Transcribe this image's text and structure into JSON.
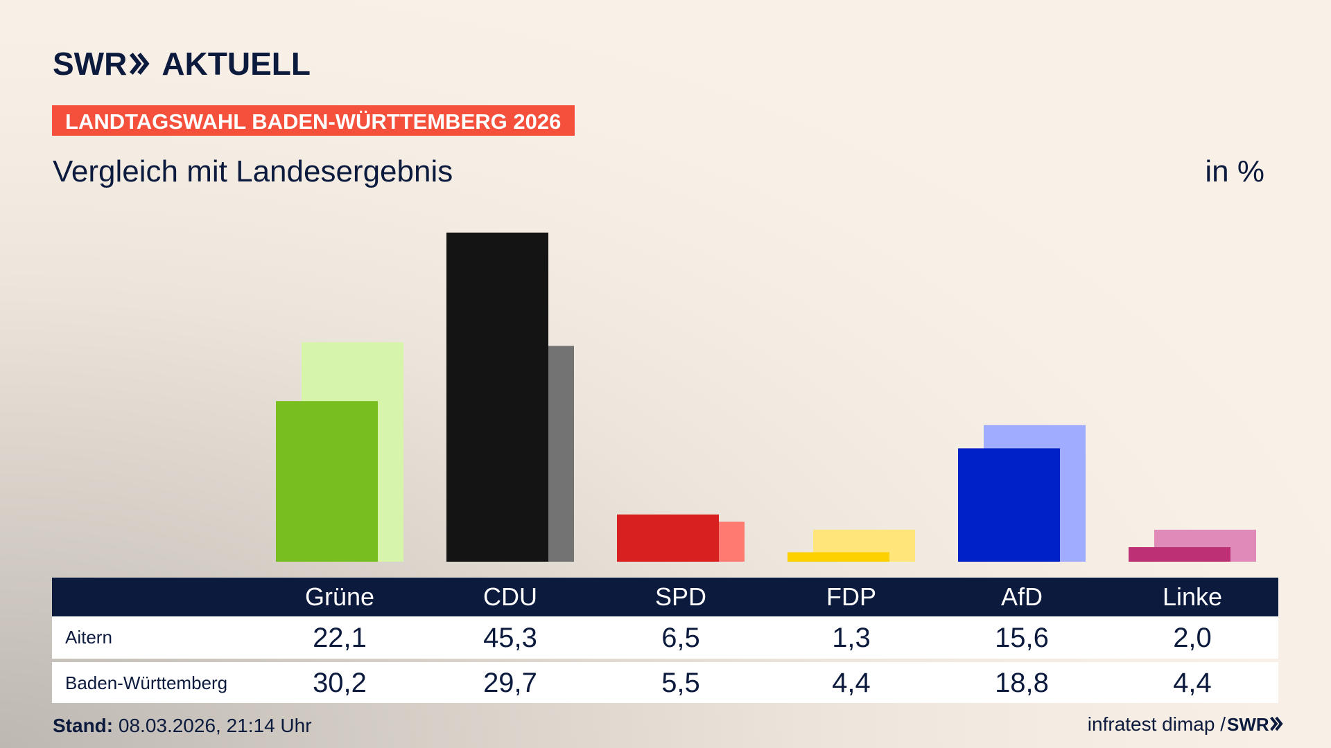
{
  "brand": "SWR",
  "brand_product": "AKTUELL",
  "chart_data": {
    "type": "overlap-bar",
    "kicker": "LANDTAGSWAHL BADEN-WÜRTTEMBERG 2026",
    "title": "Vergleich mit Landesergebnis",
    "unit_label": "in %",
    "categories": [
      "Grüne",
      "CDU",
      "SPD",
      "FDP",
      "AfD",
      "Linke"
    ],
    "series": [
      {
        "name": "Aitern",
        "values": [
          22.1,
          45.3,
          6.5,
          1.3,
          15.6,
          2.0
        ],
        "value_labels": [
          "22,1",
          "45,3",
          "6,5",
          "1,3",
          "15,6",
          "2,0"
        ],
        "colors": [
          "#78be1e",
          "#141414",
          "#d7201f",
          "#fdd000",
          "#0020c8",
          "#be3075"
        ]
      },
      {
        "name": "Baden-Württemberg",
        "values": [
          30.2,
          29.7,
          5.5,
          4.4,
          18.8,
          4.4
        ],
        "value_labels": [
          "30,2",
          "29,7",
          "5,5",
          "4,4",
          "18,8",
          "4,4"
        ],
        "colors": [
          "#d7f5aa",
          "#737373",
          "#ff7a70",
          "#ffe57a",
          "#a0acff",
          "#df8ab8"
        ]
      }
    ],
    "footer_label": "Stand:",
    "footer_date": "08.03.2026, 21:14 Uhr",
    "source": "infratest dimap /"
  }
}
